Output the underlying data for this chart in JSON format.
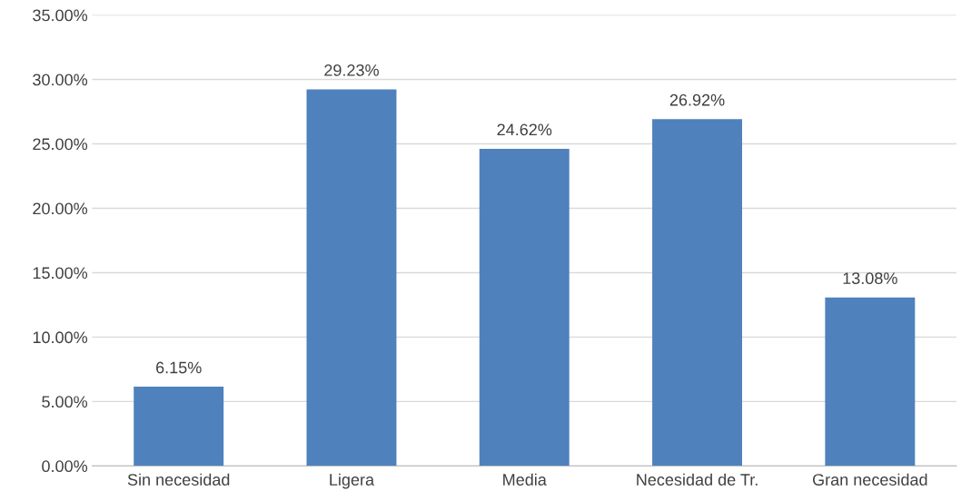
{
  "chart_data": {
    "type": "bar",
    "categories": [
      "Sin necesidad",
      "Ligera",
      "Media",
      "Necesidad de Tr.",
      "Gran necesidad"
    ],
    "values": [
      6.15,
      29.23,
      24.62,
      26.92,
      13.08
    ],
    "value_labels": [
      "6.15%",
      "29.23%",
      "24.62%",
      "26.92%",
      "13.08%"
    ],
    "color": "#4f81bd",
    "ylim": [
      0,
      35
    ],
    "yticks": [
      {
        "value": 0,
        "label": "0.00%"
      },
      {
        "value": 5,
        "label": "5.00%"
      },
      {
        "value": 10,
        "label": "10.00%"
      },
      {
        "value": 15,
        "label": "15.00%"
      },
      {
        "value": 20,
        "label": "20.00%"
      },
      {
        "value": 25,
        "label": "25.00%"
      },
      {
        "value": 30,
        "label": "30.00%"
      },
      {
        "value": 35,
        "label": "35.00%"
      }
    ],
    "grid": "y"
  }
}
